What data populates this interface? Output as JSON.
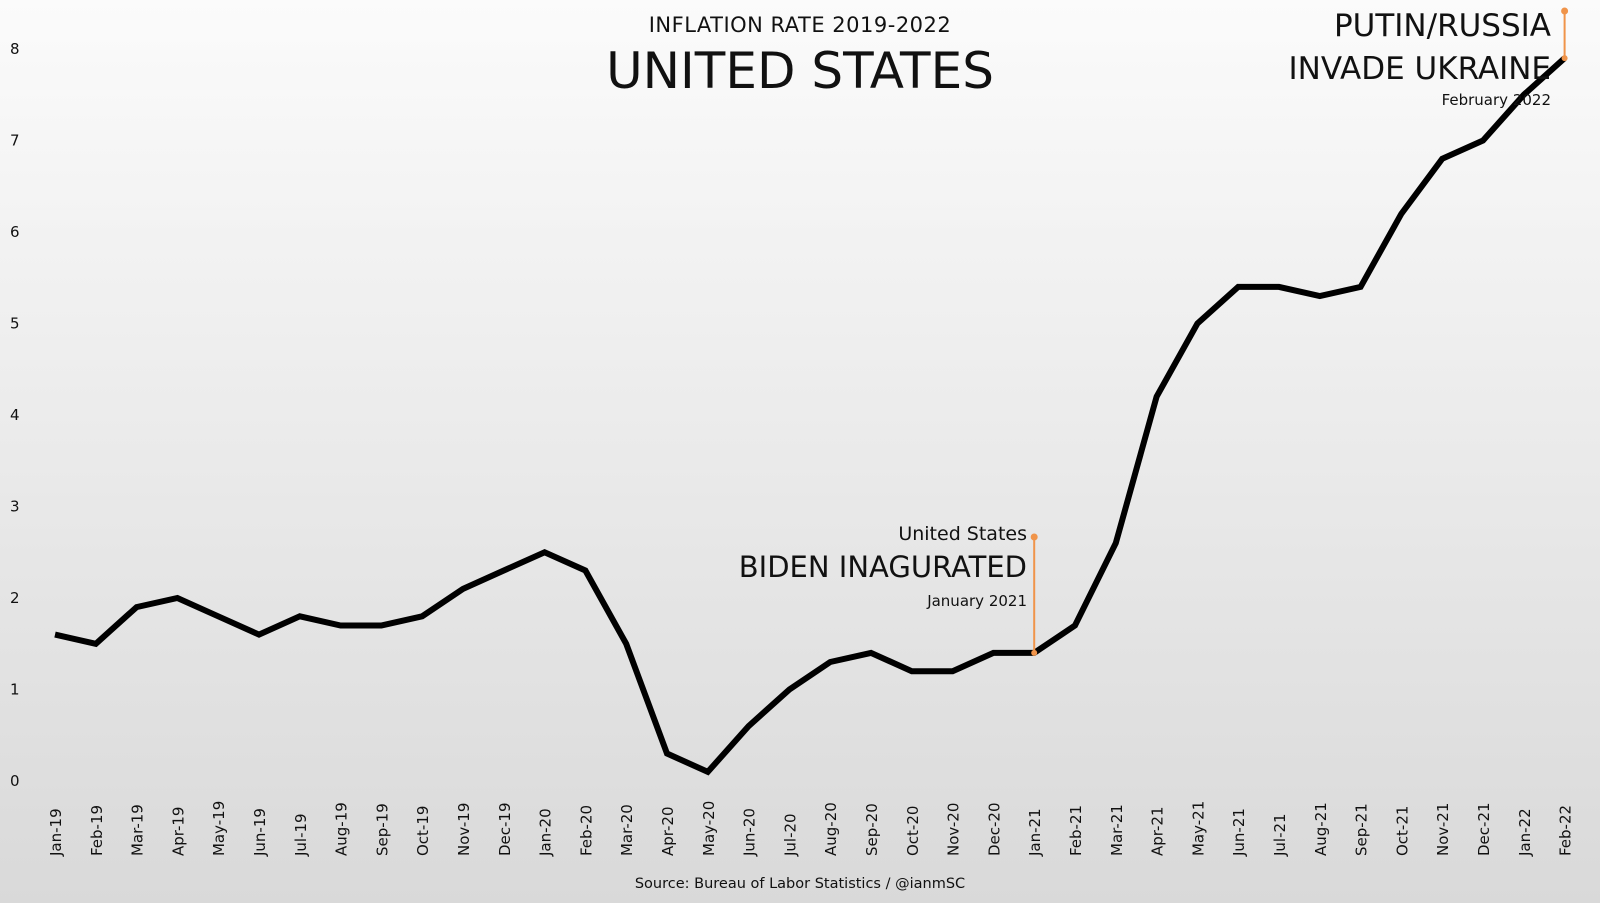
{
  "header": {
    "subtitle": "INFLATION RATE 2019-2022",
    "title": "UNITED STATES"
  },
  "footer": {
    "source": "Source: Bureau of Labor Statistics / @ianmSC"
  },
  "annotations": {
    "putin": {
      "line1": "PUTIN/RUSSIA",
      "line2": "INVADE UKRAINE",
      "date": "February 2022",
      "x": "Feb-22"
    },
    "biden": {
      "line1": "United States",
      "line2": "BIDEN INAGURATED",
      "date": "January 2021",
      "x": "Jan-21"
    }
  },
  "colors": {
    "line": "#000000",
    "annotation": "#f0944a",
    "text": "#111111"
  },
  "chart_data": {
    "type": "line",
    "categories": [
      "Jan-19",
      "Feb-19",
      "Mar-19",
      "Apr-19",
      "May-19",
      "Jun-19",
      "Jul-19",
      "Aug-19",
      "Sep-19",
      "Oct-19",
      "Nov-19",
      "Dec-19",
      "Jan-20",
      "Feb-20",
      "Mar-20",
      "Apr-20",
      "May-20",
      "Jun-20",
      "Jul-20",
      "Aug-20",
      "Sep-20",
      "Oct-20",
      "Nov-20",
      "Dec-20",
      "Jan-21",
      "Feb-21",
      "Mar-21",
      "Apr-21",
      "May-21",
      "Jun-21",
      "Jul-21",
      "Aug-21",
      "Sep-21",
      "Oct-21",
      "Nov-21",
      "Dec-21",
      "Jan-22",
      "Feb-22"
    ],
    "series": [
      {
        "values": [
          1.6,
          1.5,
          1.9,
          2.0,
          1.8,
          1.6,
          1.8,
          1.7,
          1.7,
          1.8,
          2.1,
          2.3,
          2.5,
          2.3,
          1.5,
          0.3,
          0.1,
          0.6,
          1.0,
          1.3,
          1.4,
          1.2,
          1.2,
          1.4,
          1.4,
          1.7,
          2.6,
          4.2,
          5.0,
          5.4,
          5.4,
          5.3,
          5.4,
          6.2,
          6.8,
          7.0,
          7.5,
          7.9
        ]
      }
    ],
    "yticks": [
      0,
      1,
      2,
      3,
      4,
      5,
      6,
      7,
      8
    ],
    "ylim": [
      0,
      8
    ],
    "grid": false,
    "legend": "none",
    "title": "UNITED STATES",
    "subtitle": "INFLATION RATE 2019-2022",
    "xlabel": "",
    "ylabel": ""
  }
}
